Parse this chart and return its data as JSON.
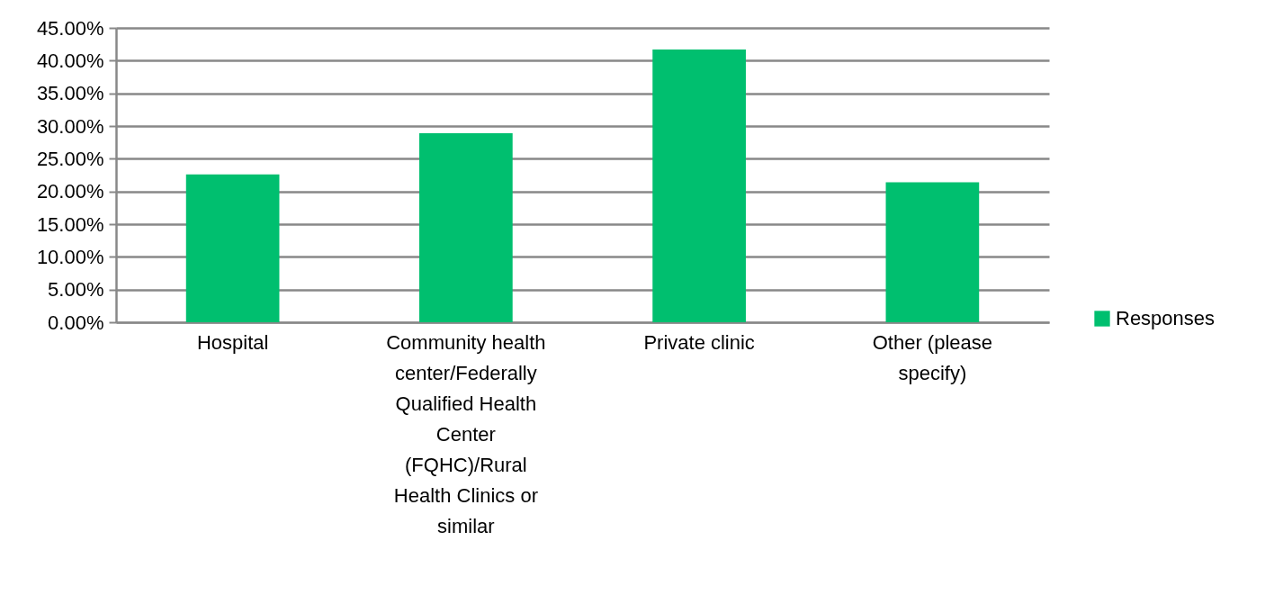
{
  "chart_data": {
    "type": "bar",
    "categories": [
      "Hospital",
      "Community health center/Federally Qualified Health Center (FQHC)/Rural Health Clinics or similar",
      "Private clinic",
      "Other (please specify)"
    ],
    "series": [
      {
        "name": "Responses",
        "color": "#00bf6f",
        "values": [
          22.6,
          28.9,
          41.7,
          21.4
        ]
      }
    ],
    "ylim": [
      0,
      45
    ],
    "yticks": [
      {
        "value": 0,
        "label": "0.00%"
      },
      {
        "value": 5,
        "label": "5.00%"
      },
      {
        "value": 10,
        "label": "10.00%"
      },
      {
        "value": 15,
        "label": "15.00%"
      },
      {
        "value": 20,
        "label": "20.00%"
      },
      {
        "value": 25,
        "label": "25.00%"
      },
      {
        "value": 30,
        "label": "30.00%"
      },
      {
        "value": 35,
        "label": "35.00%"
      },
      {
        "value": 40,
        "label": "40.00%"
      },
      {
        "value": 45,
        "label": "45.00%"
      }
    ],
    "grid": "y",
    "legend": "right"
  }
}
